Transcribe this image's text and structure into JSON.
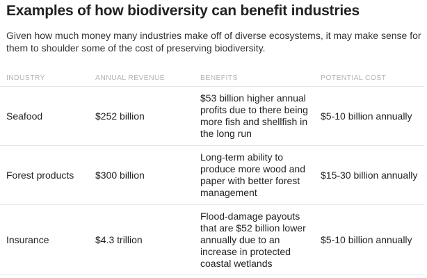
{
  "title": "Examples of how biodiversity can benefit industries",
  "subtitle": "Given how much money many industries make off of diverse ecosystems, it may make sense for them to shoulder some of the cost of preserving biodiversity.",
  "table": {
    "columns": [
      "INDUSTRY",
      "ANNUAL REVENUE",
      "BENEFITS",
      "POTENTIAL COST"
    ],
    "rows": [
      {
        "industry": "Seafood",
        "revenue": "$252 billion",
        "benefits": "$53 billion higher annual profits due to there being more fish and shellfish in the long run",
        "cost": "$5-10 billion annually"
      },
      {
        "industry": "Forest products",
        "revenue": "$300 billion",
        "benefits": "Long-term ability to produce more wood and paper with better forest management",
        "cost": "$15-30 billion annually"
      },
      {
        "industry": "Insurance",
        "revenue": "$4.3 trillion",
        "benefits": "Flood-damage payouts that are $52 billion lower annually due to an increase in protected coastal wetlands",
        "cost": "$5-10 billion annually"
      }
    ]
  }
}
